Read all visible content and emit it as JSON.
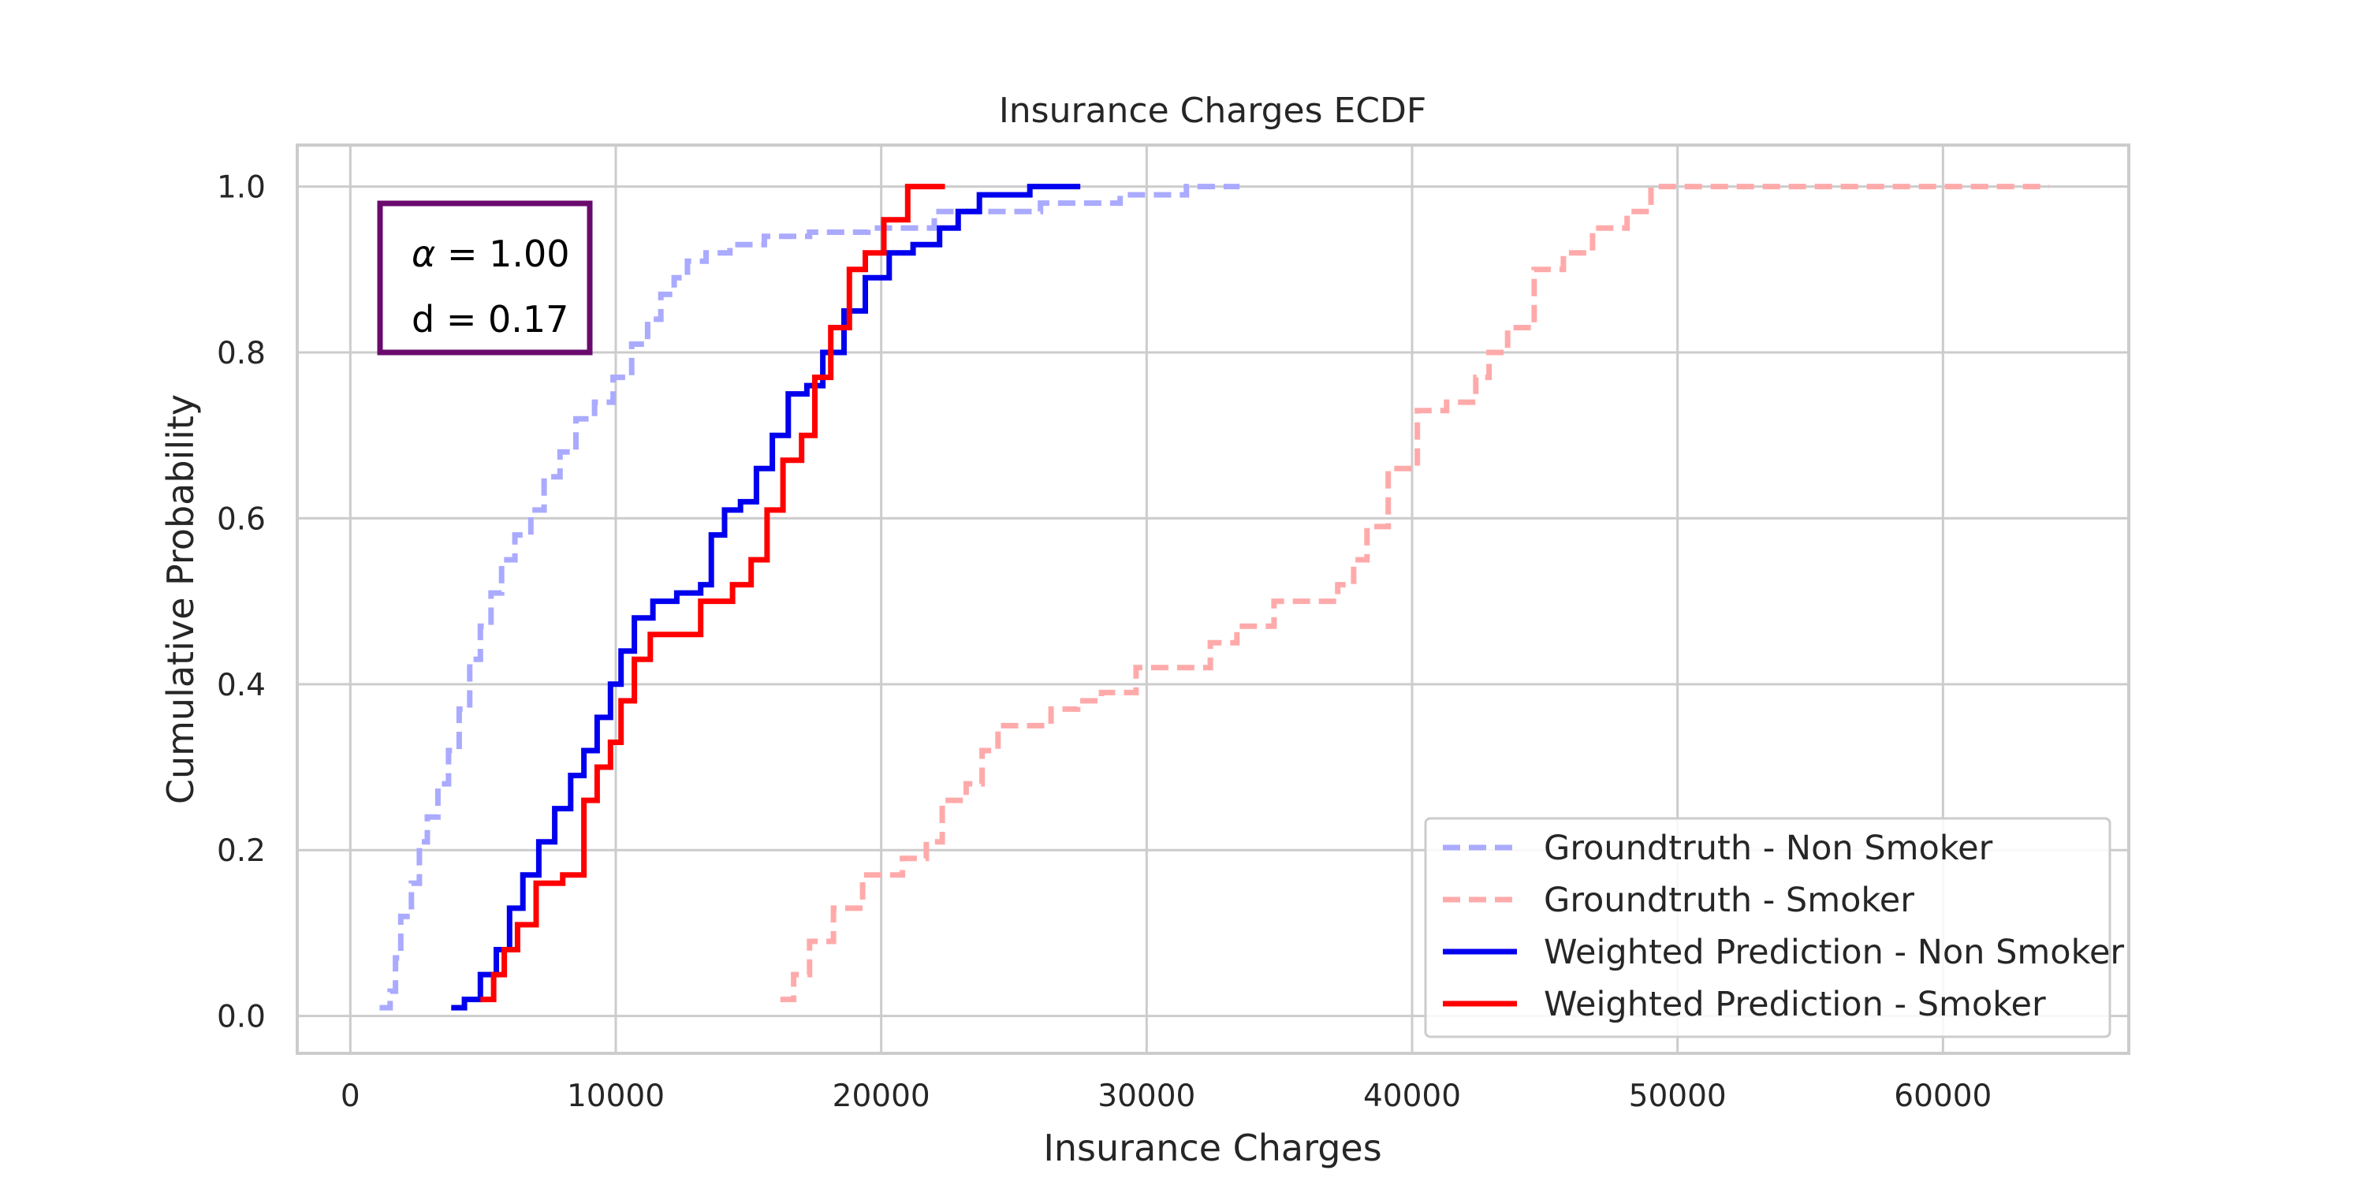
{
  "chart_data": {
    "type": "line",
    "title": "Insurance Charges ECDF",
    "xlabel": "Insurance Charges",
    "ylabel": "Cumulative Probability",
    "xlim": [
      -2000,
      67000
    ],
    "ylim": [
      -0.045,
      1.05
    ],
    "x_ticks": [
      0,
      10000,
      20000,
      30000,
      40000,
      50000,
      60000
    ],
    "x_tick_labels": [
      "0",
      "10000",
      "20000",
      "30000",
      "40000",
      "50000",
      "60000"
    ],
    "y_ticks": [
      0.0,
      0.2,
      0.4,
      0.6,
      0.8,
      1.0
    ],
    "y_tick_labels": [
      "0.0",
      "0.2",
      "0.4",
      "0.6",
      "0.8",
      "1.0"
    ],
    "grid": true,
    "legend_position": "lower-right",
    "annotation": {
      "line1_symbol": "α",
      "line1_rest": " = 1.00",
      "line2": "d = 0.17",
      "border_color": "#6a0a6e"
    },
    "series": [
      {
        "name": "Groundtruth - Non Smoker",
        "color": "#aaaaff",
        "style": "dashed",
        "x": [
          1100,
          1500,
          1700,
          1900,
          2300,
          2600,
          2900,
          3300,
          3700,
          4100,
          4500,
          4900,
          5300,
          5700,
          6200,
          6800,
          7300,
          7900,
          8500,
          9200,
          9900,
          10600,
          11200,
          11700,
          12200,
          12700,
          13400,
          14300,
          15600,
          17300,
          19500,
          22000,
          26000,
          29000,
          31500,
          33500
        ],
        "y": [
          0.01,
          0.03,
          0.07,
          0.12,
          0.16,
          0.21,
          0.24,
          0.28,
          0.32,
          0.37,
          0.43,
          0.47,
          0.51,
          0.55,
          0.58,
          0.61,
          0.65,
          0.68,
          0.72,
          0.74,
          0.77,
          0.81,
          0.84,
          0.87,
          0.89,
          0.91,
          0.92,
          0.93,
          0.94,
          0.945,
          0.95,
          0.97,
          0.98,
          0.99,
          1.0,
          1.0
        ]
      },
      {
        "name": "Groundtruth - Smoker",
        "color": "#ffaaaa",
        "style": "dashed",
        "x": [
          16200,
          16700,
          17300,
          18200,
          19300,
          20800,
          21700,
          22300,
          23200,
          23800,
          24400,
          26400,
          27400,
          28300,
          29600,
          32400,
          33400,
          34800,
          37200,
          37800,
          38300,
          39100,
          40200,
          41300,
          42400,
          42900,
          43600,
          44600,
          45700,
          46800,
          48100,
          49000,
          52000,
          56000,
          60000,
          64000
        ],
        "y": [
          0.02,
          0.05,
          0.09,
          0.13,
          0.17,
          0.19,
          0.21,
          0.26,
          0.28,
          0.32,
          0.35,
          0.37,
          0.38,
          0.39,
          0.42,
          0.45,
          0.47,
          0.5,
          0.52,
          0.55,
          0.59,
          0.66,
          0.73,
          0.74,
          0.77,
          0.8,
          0.83,
          0.9,
          0.92,
          0.95,
          0.97,
          1.0,
          1.0,
          1.0,
          1.0,
          1.0
        ]
      },
      {
        "name": "Weighted Prediction - Non Smoker",
        "color": "#0000ee",
        "style": "solid",
        "x": [
          3800,
          4300,
          4900,
          5500,
          6000,
          6500,
          7100,
          7700,
          8300,
          8800,
          9300,
          9800,
          10200,
          10700,
          11400,
          12300,
          13200,
          13600,
          14100,
          14700,
          15300,
          15900,
          16500,
          17200,
          17800,
          18600,
          19400,
          20300,
          21200,
          22200,
          22900,
          23700,
          25600,
          27500
        ],
        "y": [
          0.01,
          0.02,
          0.05,
          0.08,
          0.13,
          0.17,
          0.21,
          0.25,
          0.29,
          0.32,
          0.36,
          0.4,
          0.44,
          0.48,
          0.5,
          0.51,
          0.52,
          0.58,
          0.61,
          0.62,
          0.66,
          0.7,
          0.75,
          0.76,
          0.8,
          0.85,
          0.89,
          0.92,
          0.93,
          0.95,
          0.97,
          0.99,
          1.0,
          1.0
        ]
      },
      {
        "name": "Weighted Prediction - Smoker",
        "color": "#ff0000",
        "style": "solid",
        "x": [
          4900,
          5400,
          5800,
          6300,
          7000,
          8000,
          8800,
          9300,
          9800,
          10200,
          10700,
          11300,
          13200,
          14400,
          15100,
          15700,
          16300,
          17000,
          17500,
          18100,
          18800,
          19400,
          20100,
          21000,
          22400
        ],
        "y": [
          0.02,
          0.05,
          0.08,
          0.11,
          0.16,
          0.17,
          0.26,
          0.3,
          0.33,
          0.38,
          0.43,
          0.46,
          0.5,
          0.52,
          0.55,
          0.61,
          0.67,
          0.7,
          0.77,
          0.83,
          0.9,
          0.92,
          0.96,
          1.0,
          1.0
        ]
      }
    ]
  }
}
